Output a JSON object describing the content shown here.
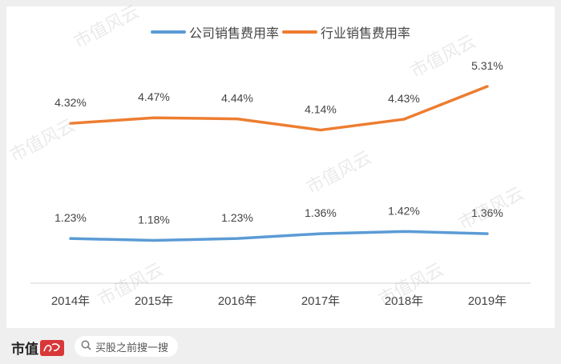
{
  "chart_data": {
    "type": "line",
    "categories": [
      "2014年",
      "2015年",
      "2016年",
      "2017年",
      "2018年",
      "2019年"
    ],
    "series": [
      {
        "name": "公司销售费用率",
        "values": [
          1.23,
          1.18,
          1.23,
          1.36,
          1.42,
          1.36
        ],
        "labels": [
          "1.23%",
          "1.18%",
          "1.23%",
          "1.36%",
          "1.42%",
          "1.36%"
        ],
        "color": "#5b9bd5"
      },
      {
        "name": "行业销售费用率",
        "values": [
          4.32,
          4.47,
          4.44,
          4.14,
          4.43,
          5.31
        ],
        "labels": [
          "4.32%",
          "4.47%",
          "4.44%",
          "4.14%",
          "4.43%",
          "5.31%"
        ],
        "color": "#ed7d31"
      }
    ],
    "legend_position": "top-center",
    "grid": false,
    "y_axis_visible": false
  },
  "watermark": {
    "text": "市值风云"
  },
  "footer": {
    "brand_text": "市值",
    "search_placeholder": "买股之前搜一搜",
    "search_icon": "search-icon",
    "logo_color": "#d8383a"
  }
}
